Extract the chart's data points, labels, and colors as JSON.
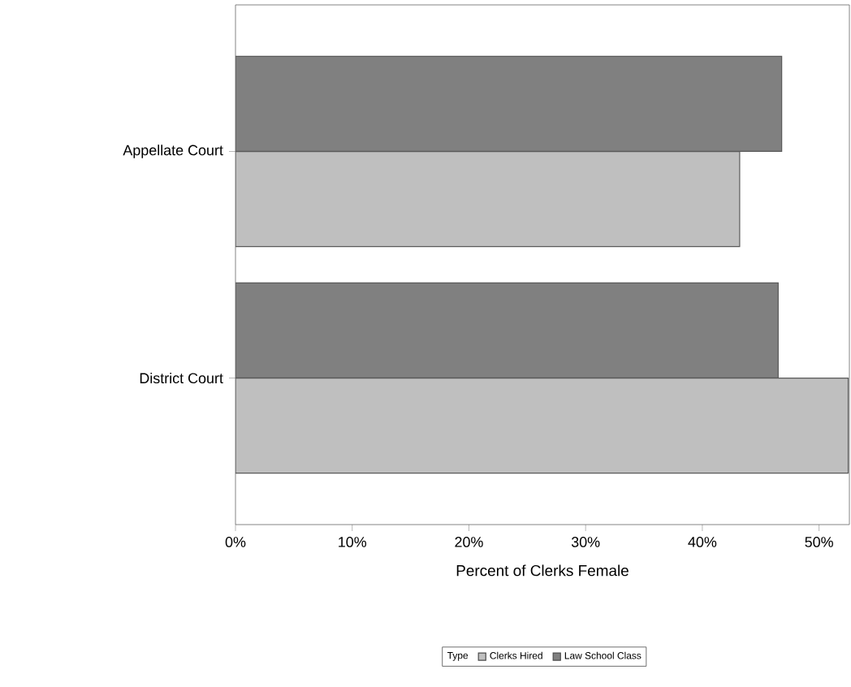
{
  "chart_data": {
    "type": "bar",
    "orientation": "horizontal",
    "xlabel": "Percent of Clerks Female",
    "legend_title": "Type",
    "legend": "bottom",
    "categories": [
      "Appellate Court",
      "District Court"
    ],
    "series": [
      {
        "name": "Clerks Hired",
        "color": "#bfbfbf",
        "values": [
          43.2,
          52.5
        ]
      },
      {
        "name": "Law School Class",
        "color": "#808080",
        "values": [
          46.8,
          46.5
        ]
      }
    ],
    "xlim": [
      0,
      52.6
    ],
    "xticks": [
      {
        "value": 0,
        "label": "0%"
      },
      {
        "value": 10,
        "label": "10%"
      },
      {
        "value": 20,
        "label": "20%"
      },
      {
        "value": 30,
        "label": "30%"
      },
      {
        "value": 40,
        "label": "40%"
      },
      {
        "value": 50,
        "label": "50%"
      }
    ]
  }
}
